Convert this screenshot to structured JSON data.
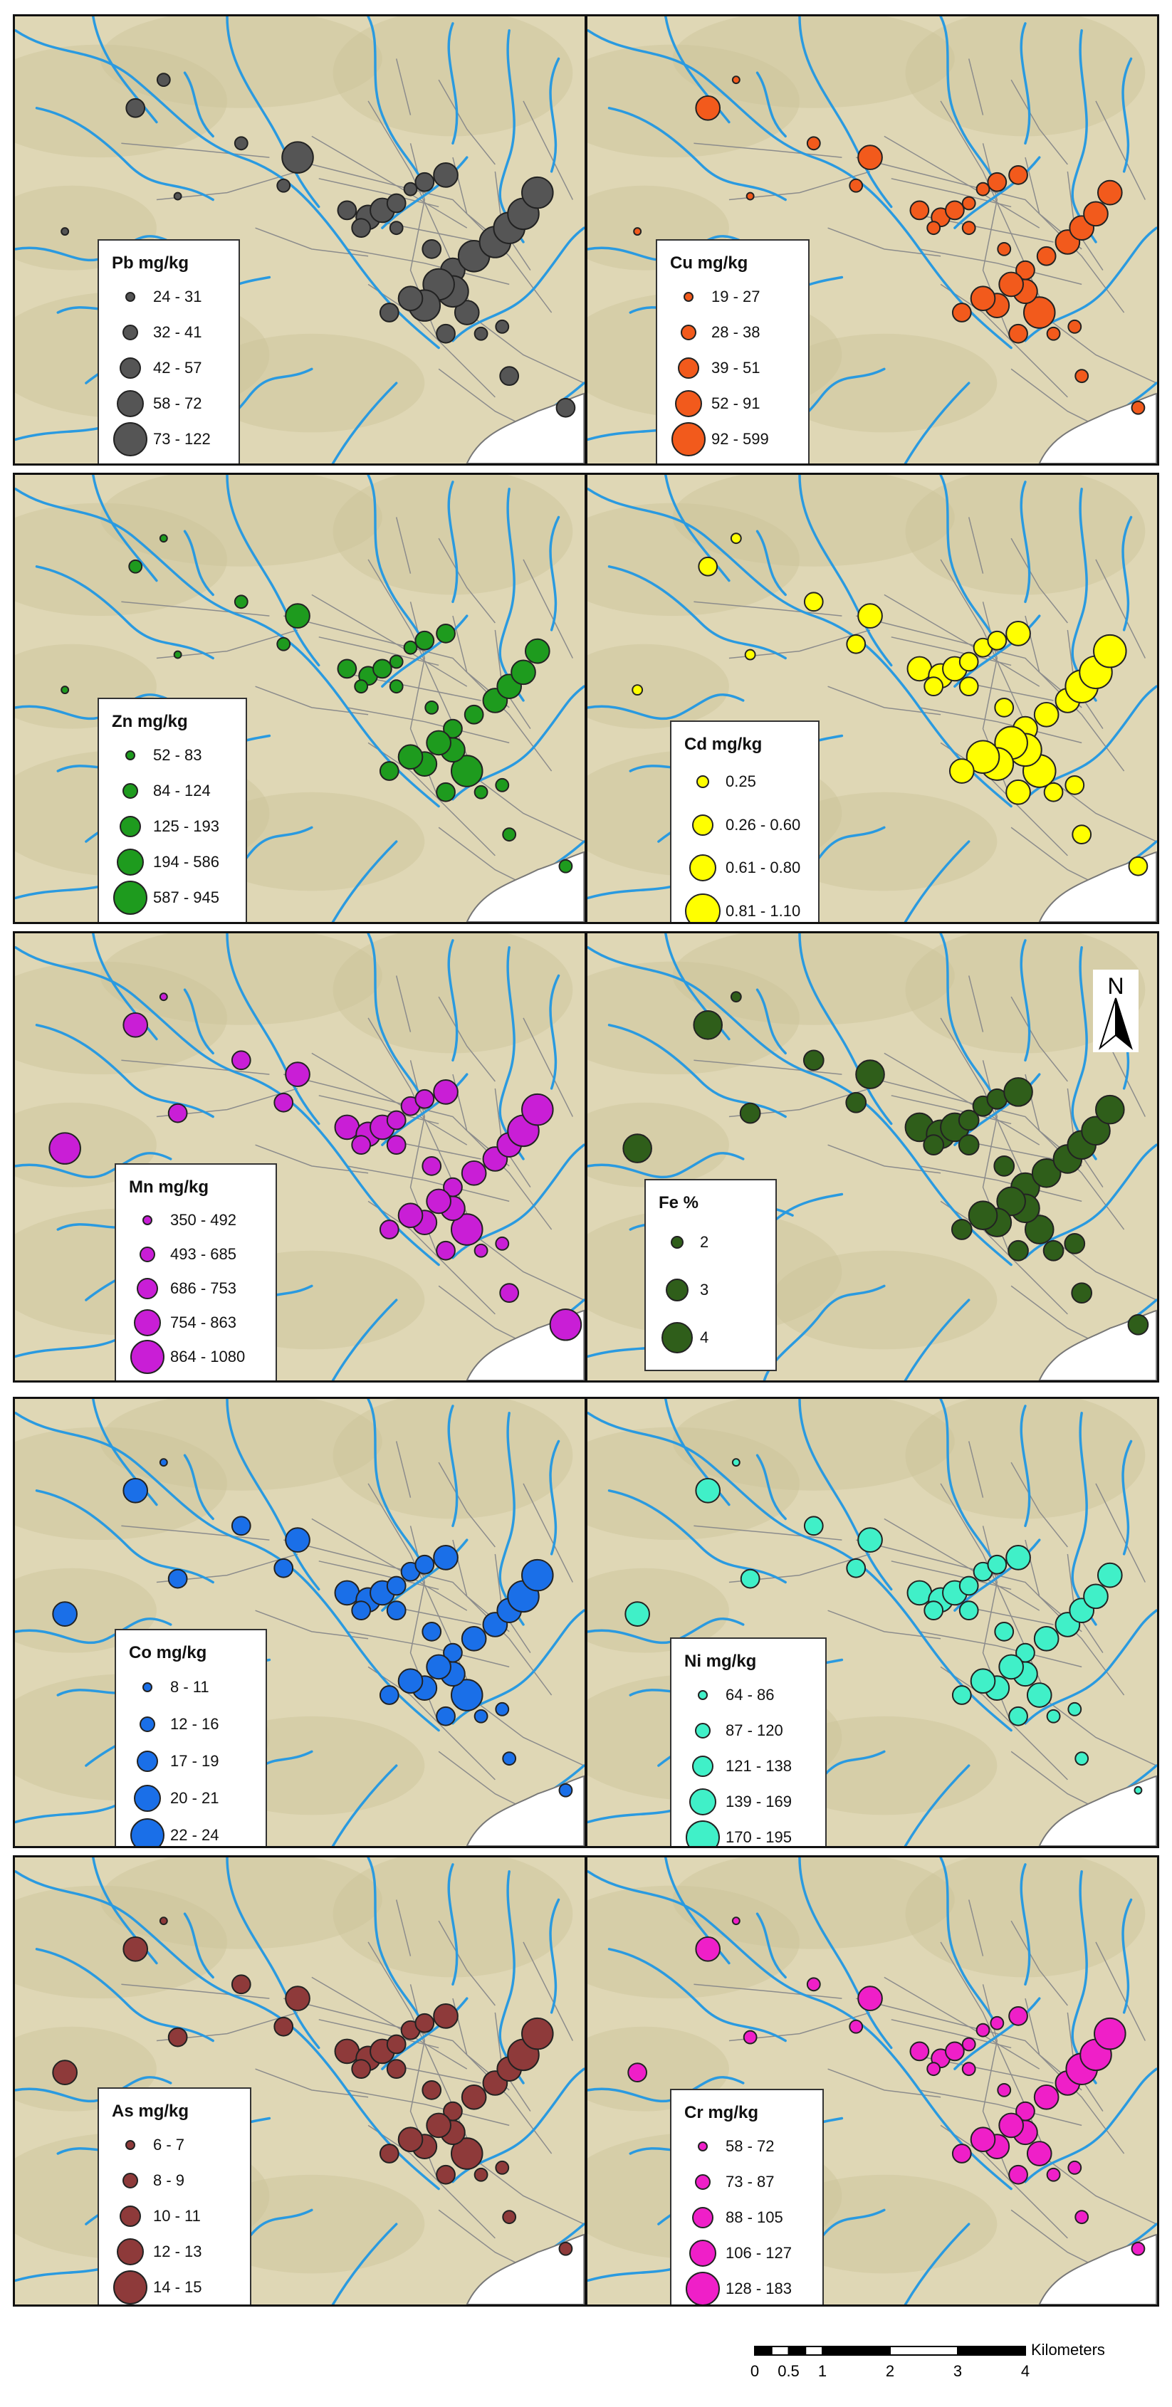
{
  "panels": [
    {
      "element": "Pb",
      "legend_title": "Pb mg/kg",
      "color": "#555555",
      "classes": [
        "24 - 31",
        "32 - 41",
        "42 - 57",
        "58 - 72",
        "73 - 122"
      ]
    },
    {
      "element": "Cu",
      "legend_title": "Cu mg/kg",
      "color": "#f25a1c",
      "classes": [
        "19 - 27",
        "28 - 38",
        "39 - 51",
        "52 - 91",
        "92 - 599"
      ]
    },
    {
      "element": "Zn",
      "legend_title": "Zn mg/kg",
      "color": "#1e9b1e",
      "classes": [
        "52 - 83",
        "84 - 124",
        "125 - 193",
        "194 - 586",
        "587 - 945"
      ]
    },
    {
      "element": "Cd",
      "legend_title": "Cd mg/kg",
      "color": "#ffff00",
      "classes": [
        "0.25",
        "0.26 - 0.60",
        "0.61 - 0.80",
        "0.81 - 1.10"
      ]
    },
    {
      "element": "Mn",
      "legend_title": "Mn mg/kg",
      "color": "#c91ed6",
      "classes": [
        "350 - 492",
        "493 - 685",
        "686 - 753",
        "754 - 863",
        "864 - 1080"
      ]
    },
    {
      "element": "Fe",
      "legend_title": "Fe %",
      "color": "#2f5e1a",
      "classes": [
        "2",
        "3",
        "4"
      ]
    },
    {
      "element": "Co",
      "legend_title": "Co mg/kg",
      "color": "#1a6fe8",
      "classes": [
        "8 - 11",
        "12 - 16",
        "17 - 19",
        "20 - 21",
        "22 - 24"
      ]
    },
    {
      "element": "Ni",
      "legend_title": "Ni mg/kg",
      "color": "#40f0c8",
      "classes": [
        "64 - 86",
        "87 - 120",
        "121 - 138",
        "139 - 169",
        "170 - 195"
      ]
    },
    {
      "element": "As",
      "legend_title": "As mg/kg",
      "color": "#8e3a3a",
      "classes": [
        "6 - 7",
        "8 - 9",
        "10 - 11",
        "12 - 13",
        "14 - 15"
      ]
    },
    {
      "element": "Cr",
      "legend_title": "Cr mg/kg",
      "color": "#ef1fc8",
      "classes": [
        "58 - 72",
        "73 - 87",
        "88 - 105",
        "106 - 127",
        "128 - 183"
      ]
    }
  ],
  "north_arrow": {
    "label": "N"
  },
  "scale_bar": {
    "ticks": [
      "0",
      "0.5",
      "1",
      "2",
      "3",
      "4"
    ],
    "unit": "Kilometers"
  },
  "colors": {
    "terrain": "#dfd7b5",
    "river": "#2a9ae0",
    "roads": "#8c8c8c",
    "sea": "#ffffff"
  }
}
